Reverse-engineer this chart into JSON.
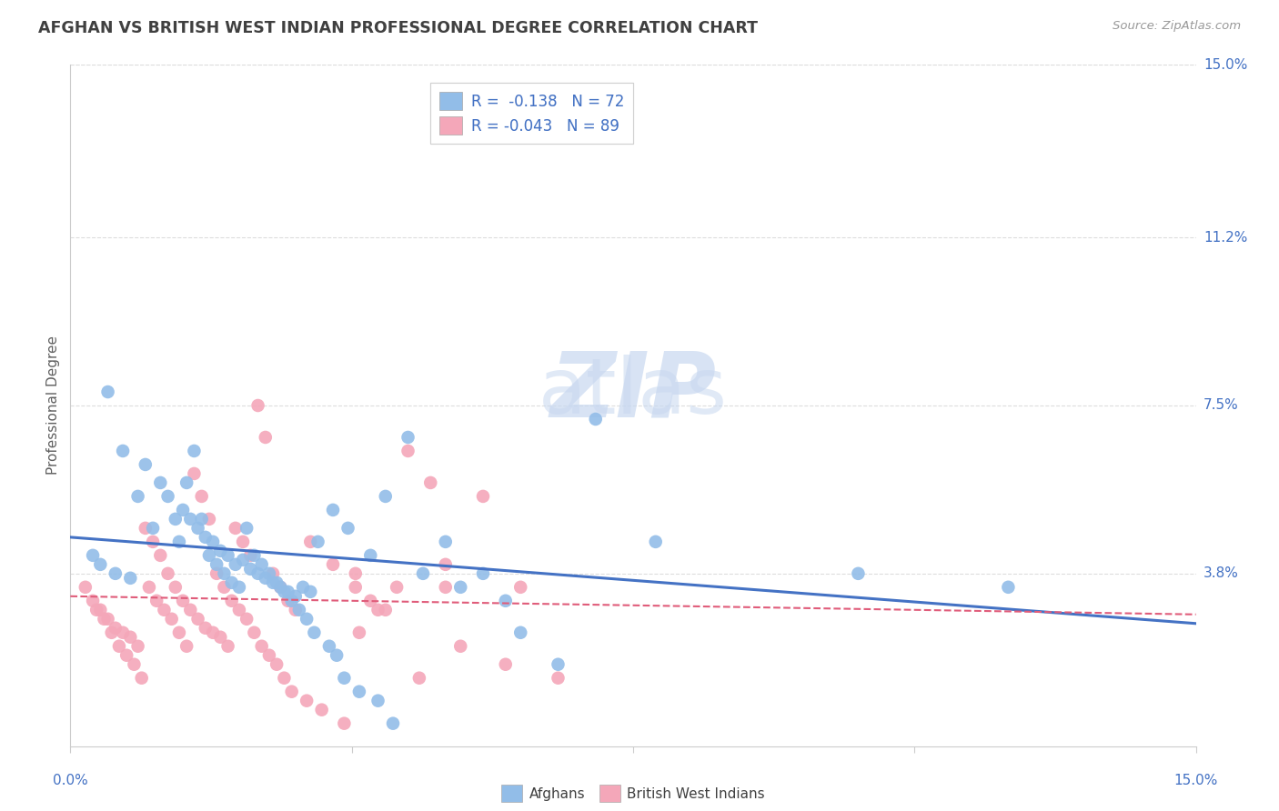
{
  "title": "AFGHAN VS BRITISH WEST INDIAN PROFESSIONAL DEGREE CORRELATION CHART",
  "source": "Source: ZipAtlas.com",
  "ylabel": "Professional Degree",
  "xlim": [
    0.0,
    15.0
  ],
  "ylim": [
    0.0,
    15.0
  ],
  "ytick_labels": [
    "3.8%",
    "7.5%",
    "11.2%",
    "15.0%"
  ],
  "ytick_values": [
    3.8,
    7.5,
    11.2,
    15.0
  ],
  "xtick_values": [
    0.0,
    3.75,
    7.5,
    11.25,
    15.0
  ],
  "afghan_color": "#92BDE8",
  "bwi_color": "#F4A7B9",
  "afghan_line_color": "#4472C4",
  "bwi_line_color": "#E05C7A",
  "title_color": "#404040",
  "axis_label_color": "#4472C4",
  "legend_text_color": "#4472C4",
  "background_color": "#FFFFFF",
  "grid_color": "#DDDDDD",
  "watermark_color": "#C8D8F0",
  "afghan_R": -0.138,
  "afghan_N": 72,
  "bwi_R": -0.043,
  "bwi_N": 89,
  "afghan_scatter_x": [
    0.5,
    0.7,
    1.0,
    1.2,
    1.3,
    1.5,
    1.6,
    1.7,
    1.8,
    1.9,
    2.0,
    2.1,
    2.2,
    2.3,
    2.4,
    2.5,
    2.6,
    2.7,
    2.8,
    2.9,
    3.0,
    3.1,
    3.2,
    3.3,
    3.5,
    3.7,
    4.0,
    4.2,
    4.5,
    5.0,
    5.5,
    6.0,
    6.5,
    7.0,
    7.8,
    10.5,
    12.5,
    0.3,
    0.4,
    0.6,
    0.8,
    0.9,
    1.1,
    1.4,
    1.45,
    1.55,
    1.65,
    1.75,
    1.85,
    1.95,
    2.05,
    2.15,
    2.25,
    2.35,
    2.45,
    2.55,
    2.65,
    2.75,
    2.85,
    2.95,
    3.05,
    3.15,
    3.25,
    3.45,
    3.55,
    3.65,
    3.85,
    4.1,
    4.3,
    4.7,
    5.2,
    5.8
  ],
  "afghan_scatter_y": [
    7.8,
    6.5,
    6.2,
    5.8,
    5.5,
    5.2,
    5.0,
    4.8,
    4.6,
    4.5,
    4.3,
    4.2,
    4.0,
    4.1,
    3.9,
    3.8,
    3.7,
    3.6,
    3.5,
    3.4,
    3.3,
    3.5,
    3.4,
    4.5,
    5.2,
    4.8,
    4.2,
    5.5,
    6.8,
    4.5,
    3.8,
    2.5,
    1.8,
    7.2,
    4.5,
    3.8,
    3.5,
    4.2,
    4.0,
    3.8,
    3.7,
    5.5,
    4.8,
    5.0,
    4.5,
    5.8,
    6.5,
    5.0,
    4.2,
    4.0,
    3.8,
    3.6,
    3.5,
    4.8,
    4.2,
    4.0,
    3.8,
    3.6,
    3.4,
    3.2,
    3.0,
    2.8,
    2.5,
    2.2,
    2.0,
    1.5,
    1.2,
    1.0,
    0.5,
    3.8,
    3.5,
    3.2
  ],
  "bwi_scatter_x": [
    0.2,
    0.3,
    0.4,
    0.5,
    0.6,
    0.7,
    0.8,
    0.9,
    1.0,
    1.1,
    1.2,
    1.3,
    1.4,
    1.5,
    1.6,
    1.7,
    1.8,
    1.9,
    2.0,
    2.1,
    2.2,
    2.3,
    2.4,
    2.5,
    2.6,
    2.7,
    2.8,
    2.9,
    3.0,
    3.2,
    3.5,
    3.8,
    4.0,
    4.2,
    4.5,
    4.8,
    5.0,
    5.5,
    6.0,
    0.35,
    0.45,
    0.55,
    0.65,
    0.75,
    0.85,
    0.95,
    1.05,
    1.15,
    1.25,
    1.35,
    1.45,
    1.55,
    1.65,
    1.75,
    1.85,
    1.95,
    2.05,
    2.15,
    2.25,
    2.35,
    2.45,
    2.55,
    2.65,
    2.75,
    2.85,
    2.95,
    3.15,
    3.35,
    3.65,
    3.85,
    4.1,
    4.35,
    4.65,
    5.2,
    5.8,
    6.5,
    3.8,
    5.0
  ],
  "bwi_scatter_y": [
    3.5,
    3.2,
    3.0,
    2.8,
    2.6,
    2.5,
    2.4,
    2.2,
    4.8,
    4.5,
    4.2,
    3.8,
    3.5,
    3.2,
    3.0,
    2.8,
    2.6,
    2.5,
    2.4,
    2.2,
    4.8,
    4.5,
    4.2,
    7.5,
    6.8,
    3.8,
    3.5,
    3.2,
    3.0,
    4.5,
    4.0,
    3.5,
    3.2,
    3.0,
    6.5,
    5.8,
    3.5,
    5.5,
    3.5,
    3.0,
    2.8,
    2.5,
    2.2,
    2.0,
    1.8,
    1.5,
    3.5,
    3.2,
    3.0,
    2.8,
    2.5,
    2.2,
    6.0,
    5.5,
    5.0,
    3.8,
    3.5,
    3.2,
    3.0,
    2.8,
    2.5,
    2.2,
    2.0,
    1.8,
    1.5,
    1.2,
    1.0,
    0.8,
    0.5,
    2.5,
    3.0,
    3.5,
    1.5,
    2.2,
    1.8,
    1.5,
    3.8,
    4.0
  ],
  "afghan_line_x": [
    0.0,
    15.0
  ],
  "afghan_line_y": [
    4.6,
    2.7
  ],
  "bwi_line_x": [
    0.0,
    15.0
  ],
  "bwi_line_y": [
    3.3,
    2.9
  ]
}
